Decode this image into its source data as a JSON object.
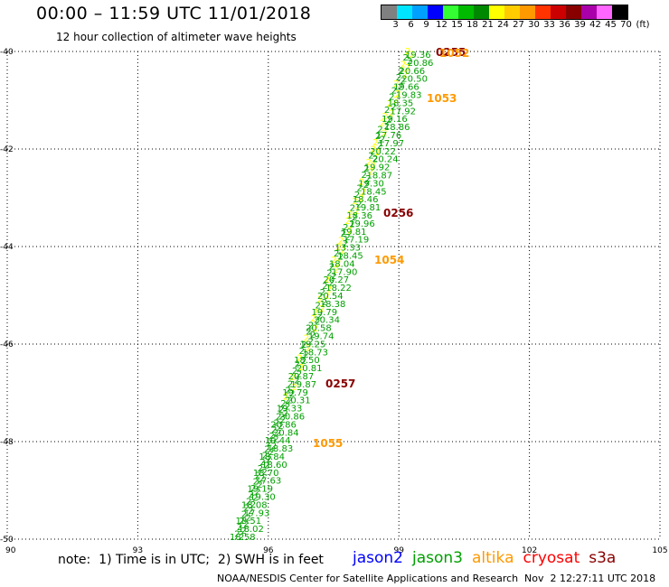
{
  "header": {
    "title": "00:00 – 11:59 UTC 11/01/2018",
    "subtitle": "12 hour collection of altimeter wave heights"
  },
  "legend": {
    "unit_label": "(ft)",
    "bins": [
      {
        "label": "3",
        "color": "#808080"
      },
      {
        "label": "6",
        "color": "#00e5ff"
      },
      {
        "label": "9",
        "color": "#00a0ff"
      },
      {
        "label": "12",
        "color": "#0000ff"
      },
      {
        "label": "15",
        "color": "#33ff33"
      },
      {
        "label": "18",
        "color": "#00bb00"
      },
      {
        "label": "21",
        "color": "#008800"
      },
      {
        "label": "24",
        "color": "#ffff00"
      },
      {
        "label": "27",
        "color": "#ffcc00"
      },
      {
        "label": "30",
        "color": "#ff9900"
      },
      {
        "label": "33",
        "color": "#ff3300"
      },
      {
        "label": "36",
        "color": "#cc0000"
      },
      {
        "label": "39",
        "color": "#880000"
      },
      {
        "label": "42",
        "color": "#aa00aa"
      },
      {
        "label": "45",
        "color": "#ff66ff"
      },
      {
        "label": "70",
        "color": "#000000"
      }
    ]
  },
  "map": {
    "lon_range": [
      90,
      105
    ],
    "lat_range": [
      -50,
      -40
    ],
    "lon_ticks": [
      "90",
      "93",
      "96",
      "99",
      "102",
      "105"
    ],
    "lat_ticks": [
      "-40",
      "-42",
      "-44",
      "-46",
      "-48",
      "-50"
    ],
    "passes": [
      {
        "label": "0255",
        "color": "#880000"
      },
      {
        "label": "1052",
        "color": "#ff9900"
      },
      {
        "label": "1053",
        "color": "#ff9900"
      },
      {
        "label": "0256",
        "color": "#880000"
      },
      {
        "label": "1054",
        "color": "#ff9900"
      },
      {
        "label": "0257",
        "color": "#880000"
      },
      {
        "label": "1055",
        "color": "#ff9900"
      }
    ],
    "track_colors": {
      "green": "#00a000",
      "yellow": "#ffff00"
    },
    "track_values": [
      "19.36",
      "20.86",
      "20.66",
      "20.50",
      "19.66",
      "19.83",
      "18.35",
      "17.92",
      "19.16",
      "18.86",
      "17.76",
      "17.97",
      "20.22",
      "20.24",
      "19.92",
      "18.87",
      "19.30",
      "18.45",
      "18.46",
      "19.81",
      "18.36",
      "19.96",
      "19.81",
      "17.19",
      "13.33",
      "18.45",
      "18.04",
      "17.90",
      "20.27",
      "18.22",
      "20.54",
      "18.38",
      "19.79",
      "20.34",
      "20.58",
      "19.74",
      "19.25",
      "18.73",
      "18.50",
      "20.81",
      "20.87",
      "19.87",
      "19.79",
      "20.31",
      "19.33",
      "20.86",
      "20.86",
      "20.84",
      "19.44",
      "18.83",
      "18.84",
      "18.60",
      "18.70",
      "17.63",
      "19.19",
      "19.30",
      "18.08",
      "17.93",
      "18.51",
      "18.02",
      "18.58"
    ]
  },
  "footer": {
    "note": "note:  1) Time is in UTC;  2) SWH is in feet",
    "satellites": [
      {
        "name": "jason2",
        "color": "#0000ff"
      },
      {
        "name": "jason3",
        "color": "#00a000"
      },
      {
        "name": "altika",
        "color": "#ff9900"
      },
      {
        "name": "cryosat",
        "color": "#ff0000"
      },
      {
        "name": "s3a",
        "color": "#880000"
      }
    ],
    "credit": "NOAA/NESDIS Center for Satellite Applications and Research",
    "timestamp": "Nov  2 12:27:11 UTC 2018"
  }
}
